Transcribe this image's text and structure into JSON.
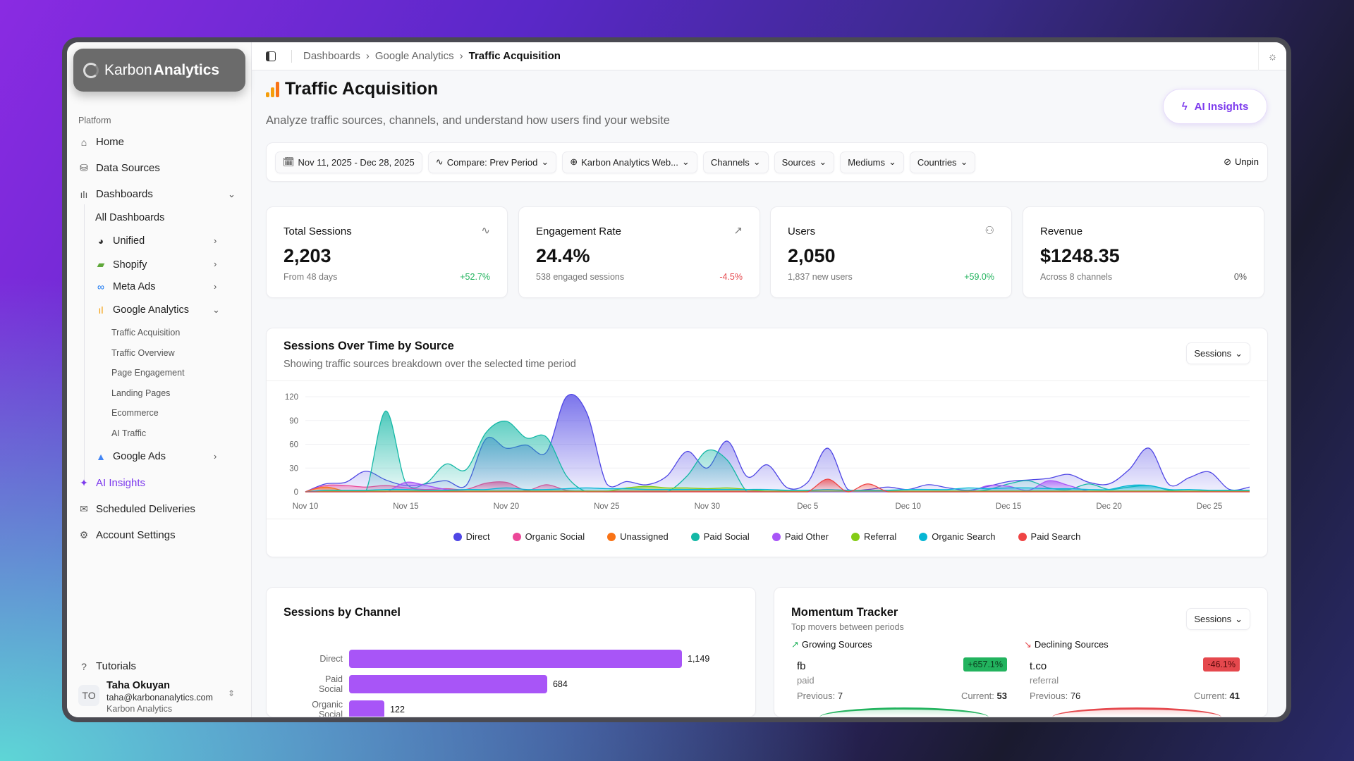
{
  "brand": {
    "name_light": "Karbon",
    "name_bold": "Analytics"
  },
  "sidebar": {
    "section": "Platform",
    "items": [
      {
        "label": "Home",
        "icon": "home-icon"
      },
      {
        "label": "Data Sources",
        "icon": "database-icon"
      },
      {
        "label": "Dashboards",
        "icon": "bar-chart-icon"
      }
    ],
    "dash_sub": [
      {
        "label": "All Dashboards"
      },
      {
        "label": "Unified"
      },
      {
        "label": "Shopify"
      },
      {
        "label": "Meta Ads"
      },
      {
        "label": "Google Analytics"
      },
      {
        "label": "Google Ads"
      }
    ],
    "ga_sub": [
      "Traffic Acquisition",
      "Traffic Overview",
      "Page Engagement",
      "Landing Pages",
      "Ecommerce",
      "AI Traffic"
    ],
    "bottom_items": [
      {
        "label": "AI Insights"
      },
      {
        "label": "Scheduled Deliveries"
      },
      {
        "label": "Account Settings"
      }
    ],
    "tutorials": "Tutorials",
    "user": {
      "initials": "TO",
      "name": "Taha Okuyan",
      "email": "taha@karbonanalytics.com",
      "org": "Karbon Analytics"
    }
  },
  "breadcrumb": [
    "Dashboards",
    "Google Analytics",
    "Traffic Acquisition"
  ],
  "page": {
    "title": "Traffic Acquisition",
    "subtitle": "Analyze traffic sources, channels, and understand how users find your website",
    "ai_button": "AI Insights"
  },
  "filters": {
    "date": "Nov 11, 2025 - Dec 28, 2025",
    "compare": "Compare: Prev Period",
    "property": "Karbon Analytics Web...",
    "channels": "Channels",
    "sources": "Sources",
    "mediums": "Mediums",
    "countries": "Countries",
    "unpin": "Unpin"
  },
  "kpis": [
    {
      "title": "Total Sessions",
      "value": "2,203",
      "sub": "From 48 days",
      "delta": "+52.7%",
      "trend": "up",
      "icon": "activity-icon"
    },
    {
      "title": "Engagement Rate",
      "value": "24.4%",
      "sub": "538 engaged sessions",
      "delta": "-4.5%",
      "trend": "down",
      "icon": "trending-up-icon"
    },
    {
      "title": "Users",
      "value": "2,050",
      "sub": "1,837 new users",
      "delta": "+59.0%",
      "trend": "up",
      "icon": "users-icon"
    },
    {
      "title": "Revenue",
      "value": "$1248.35",
      "sub": "Across 8 channels",
      "delta": "0%",
      "trend": "flat",
      "icon": ""
    }
  ],
  "colors": {
    "up": "#22b35e",
    "down": "#e5484d",
    "flat": "#555555",
    "accent": "#7c3aed"
  },
  "sessions_chart": {
    "title": "Sessions Over Time by Source",
    "subtitle": "Showing traffic sources breakdown over the selected time period",
    "metric": "Sessions"
  },
  "chart_data": [
    {
      "type": "area",
      "title": "Sessions Over Time by Source",
      "ylim": [
        0,
        120
      ],
      "yticks": [
        0,
        30,
        60,
        90,
        120
      ],
      "xtick_labels": [
        "Nov 10",
        "Nov 15",
        "Nov 20",
        "Nov 25",
        "Nov 30",
        "Dec 5",
        "Dec 10",
        "Dec 15",
        "Dec 20",
        "Dec 25"
      ],
      "x_start": "Nov 10",
      "x_end": "Dec 27",
      "grid": true,
      "legend": "bottom",
      "series": [
        {
          "name": "Direct",
          "color": "#4f46e5",
          "values": [
            0,
            10,
            12,
            26,
            15,
            8,
            10,
            14,
            8,
            67,
            55,
            59,
            50,
            120,
            100,
            10,
            13,
            9,
            20,
            51,
            30,
            64,
            19,
            34,
            5,
            12,
            55,
            3,
            3,
            6,
            3,
            9,
            5,
            2,
            7,
            13,
            15,
            17,
            22,
            12,
            10,
            28,
            55,
            9,
            18,
            25,
            3,
            6
          ]
        },
        {
          "name": "Organic Social",
          "color": "#ec4899",
          "values": [
            0,
            8,
            8,
            6,
            8,
            5,
            3,
            4,
            3,
            11,
            12,
            2,
            9,
            2,
            1,
            1,
            1,
            1,
            1,
            1,
            1,
            1,
            1,
            1,
            1,
            1,
            1,
            1,
            1,
            1,
            1,
            1,
            1,
            1,
            1,
            1,
            1,
            1,
            1,
            1,
            1,
            1,
            1,
            1,
            1,
            1,
            1,
            1
          ]
        },
        {
          "name": "Unassigned",
          "color": "#f97316",
          "values": [
            0,
            6,
            1,
            1,
            1,
            1,
            1,
            1,
            1,
            1,
            1,
            1,
            1,
            1,
            1,
            1,
            1,
            1,
            1,
            1,
            1,
            1,
            1,
            1,
            1,
            1,
            1,
            1,
            1,
            1,
            1,
            1,
            1,
            1,
            1,
            1,
            1,
            1,
            1,
            1,
            1,
            1,
            1,
            1,
            1,
            1,
            1,
            1
          ]
        },
        {
          "name": "Paid Social",
          "color": "#14b8a6",
          "values": [
            0,
            0,
            0,
            0,
            102,
            11,
            11,
            35,
            28,
            75,
            89,
            68,
            69,
            20,
            0,
            0,
            0,
            0,
            0,
            20,
            52,
            40,
            0,
            0,
            0,
            0,
            0,
            0,
            0,
            0,
            0,
            0,
            0,
            0,
            3,
            10,
            14,
            5,
            3,
            10,
            3,
            6,
            8,
            2,
            1,
            1,
            1,
            1
          ]
        },
        {
          "name": "Paid Other",
          "color": "#a855f7",
          "values": [
            0,
            0,
            0,
            0,
            0,
            12,
            8,
            3,
            1,
            1,
            1,
            1,
            1,
            1,
            1,
            0,
            0,
            0,
            0,
            0,
            0,
            0,
            0,
            0,
            0,
            0,
            0,
            0,
            0,
            0,
            0,
            0,
            0,
            0,
            8,
            7,
            2,
            14,
            8,
            1,
            0,
            0,
            0,
            0,
            0,
            0,
            0,
            0
          ]
        },
        {
          "name": "Referral",
          "color": "#84cc16",
          "values": [
            0,
            1,
            1,
            1,
            1,
            1,
            1,
            1,
            1,
            1,
            1,
            1,
            1,
            1,
            1,
            1,
            5,
            7,
            5,
            5,
            4,
            5,
            3,
            1,
            1,
            1,
            1,
            1,
            1,
            1,
            1,
            1,
            1,
            1,
            1,
            1,
            1,
            1,
            1,
            1,
            1,
            1,
            1,
            1,
            1,
            1,
            1,
            1
          ]
        },
        {
          "name": "Organic Search",
          "color": "#06b6d4",
          "values": [
            0,
            2,
            2,
            2,
            3,
            3,
            2,
            2,
            3,
            3,
            5,
            3,
            3,
            4,
            5,
            4,
            4,
            3,
            3,
            3,
            3,
            3,
            3,
            3,
            2,
            2,
            3,
            2,
            2,
            2,
            3,
            3,
            3,
            5,
            4,
            5,
            5,
            4,
            4,
            3,
            3,
            8,
            8,
            3,
            3,
            2,
            2,
            2
          ]
        },
        {
          "name": "Paid Search",
          "color": "#ef4444",
          "values": [
            0,
            0,
            0,
            0,
            0,
            0,
            0,
            0,
            0,
            0,
            0,
            0,
            0,
            0,
            0,
            0,
            0,
            0,
            0,
            0,
            0,
            0,
            0,
            0,
            0,
            0,
            16,
            0,
            10,
            0,
            0,
            0,
            0,
            0,
            0,
            0,
            0,
            0,
            0,
            0,
            0,
            0,
            0,
            0,
            0,
            0,
            0,
            0
          ]
        }
      ]
    },
    {
      "type": "bar",
      "orientation": "horizontal",
      "title": "Sessions by Channel",
      "categories": [
        "Direct",
        "Paid Social",
        "Organic Social"
      ],
      "values": [
        1149,
        684,
        122
      ],
      "value_labels": [
        "1,149",
        "684",
        "122"
      ],
      "color": "#a855f7"
    }
  ],
  "momentum": {
    "title": "Momentum Tracker",
    "subtitle": "Top movers between periods",
    "metric": "Sessions",
    "growing": {
      "heading": "Growing Sources",
      "source": "fb",
      "medium": "paid",
      "delta": "+657.1%",
      "previous_label": "Previous:",
      "previous": "7",
      "current_label": "Current:",
      "current": "53"
    },
    "declining": {
      "heading": "Declining Sources",
      "source": "t.co",
      "medium": "referral",
      "delta": "-46.1%",
      "previous_label": "Previous:",
      "previous": "76",
      "current_label": "Current:",
      "current": "41"
    }
  }
}
